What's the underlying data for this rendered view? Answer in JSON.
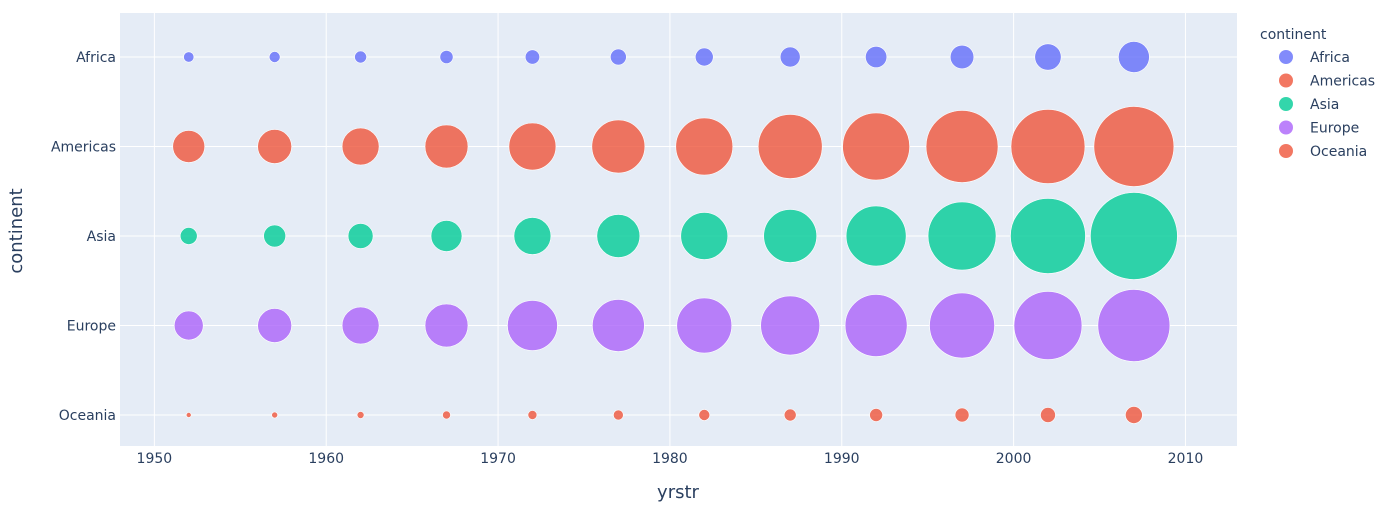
{
  "chart_data": {
    "type": "scatter",
    "xlabel": "yrstr",
    "ylabel": "continent",
    "xlim": [
      1948,
      2013
    ],
    "x_ticks": [
      1950,
      1960,
      1970,
      1980,
      1990,
      2000,
      2010
    ],
    "categories": [
      "Africa",
      "Americas",
      "Asia",
      "Europe",
      "Oceania"
    ],
    "x": [
      1952,
      1957,
      1962,
      1967,
      1972,
      1977,
      1982,
      1987,
      1992,
      1997,
      2002,
      2007
    ],
    "size_encoding": "bubble area",
    "legend": {
      "title": "continent",
      "placement": "right"
    },
    "grid": true,
    "background": "#e5ecf6",
    "series": [
      {
        "name": "Africa",
        "color": "#636efa",
        "y": "Africa",
        "size": [
          5.2,
          5.5,
          6,
          6.6,
          7.2,
          8,
          9,
          10,
          10.7,
          11.8,
          13.2,
          15.5
        ]
      },
      {
        "name": "Americas",
        "color": "#ef553b",
        "y": "Americas",
        "size": [
          16,
          17,
          18.5,
          21.5,
          23.5,
          26.5,
          28.5,
          32,
          33.5,
          36,
          37,
          40
        ]
      },
      {
        "name": "Asia",
        "color": "#00cc96",
        "y": "Asia",
        "size": [
          8.5,
          11,
          12.5,
          15.5,
          18.5,
          21.5,
          23.5,
          26.5,
          30,
          34,
          37.5,
          43.5
        ]
      },
      {
        "name": "Europe",
        "color": "#ab63fa",
        "y": "Europe",
        "size": [
          14.5,
          17,
          18.5,
          21.5,
          25,
          26,
          27.5,
          29.5,
          31,
          32.5,
          34,
          36
        ]
      },
      {
        "name": "Oceania",
        "color": "#ef553b",
        "y": "Oceania",
        "size": [
          2.5,
          3,
          3.5,
          4,
          4.5,
          5,
          5.5,
          6,
          6.5,
          7,
          7.5,
          8.5
        ]
      }
    ]
  }
}
